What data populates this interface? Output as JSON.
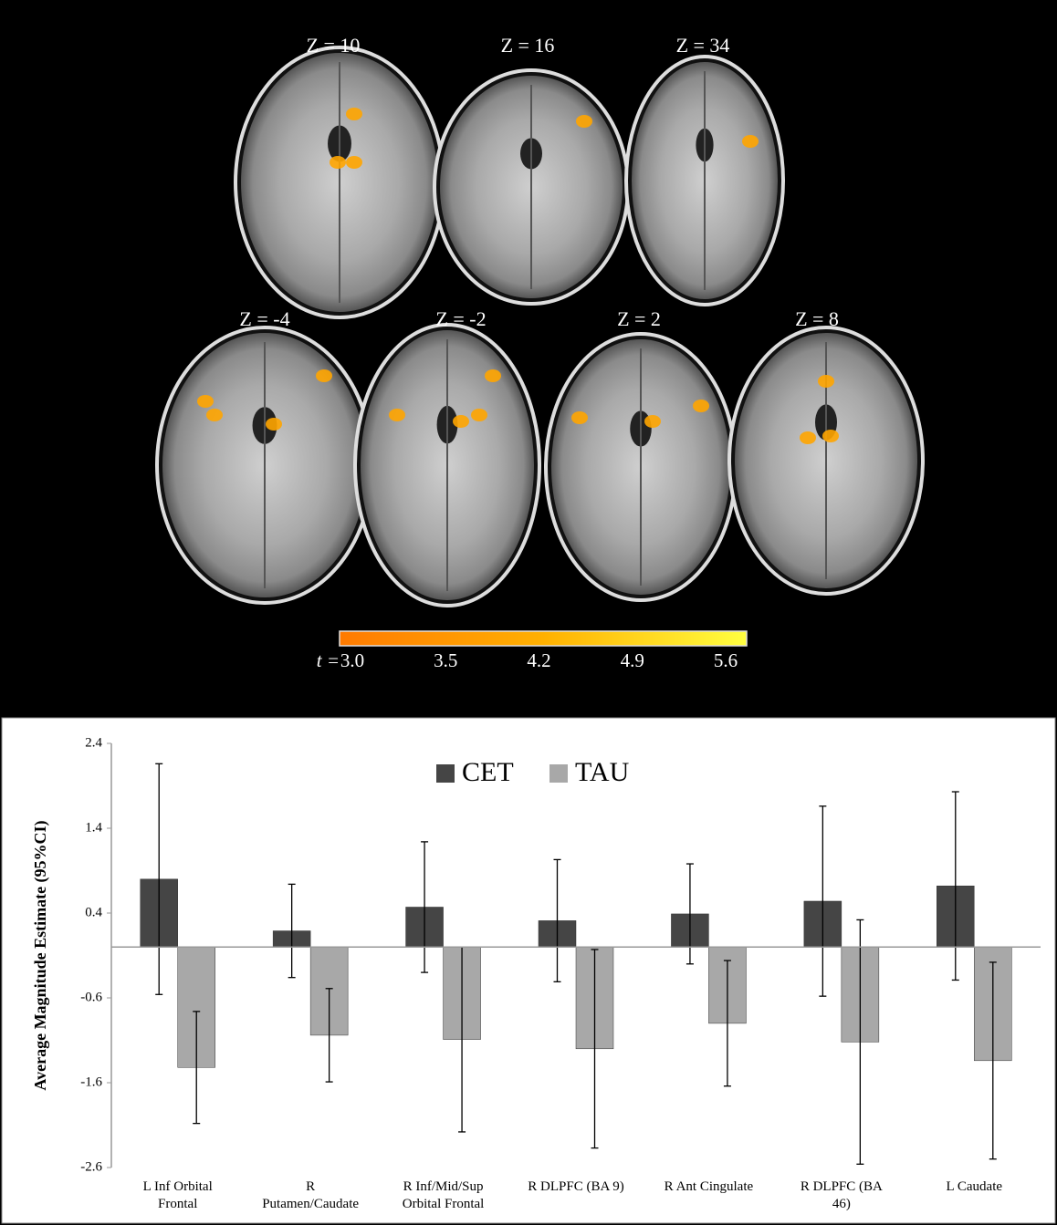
{
  "brain_panel": {
    "slices": [
      "Z = 10",
      "Z = 16",
      "Z = 34",
      "Z = -4",
      "Z = -2",
      "Z = 2",
      "Z = 8"
    ],
    "colorbar": {
      "label": "t =",
      "ticks": [
        {
          "value": 3.0,
          "label": "3.0"
        },
        3.5,
        4.2,
        4.9,
        5.6
      ]
    }
  },
  "chart_data": {
    "type": "bar",
    "ylabel": "Average Magnitude Estimate  (95%CI)",
    "categories": [
      "L Inf Orbital\nFrontal",
      "R\nPutamen/Caudate",
      "R Inf/Mid/Sup\nOrbital Frontal",
      "R DLPFC (BA 9)",
      "R Ant Cingulate",
      "R DLPFC (BA\n46)",
      "L Caudate"
    ],
    "series": [
      {
        "name": "CET",
        "color": "#454545",
        "values": [
          0.8,
          0.19,
          0.47,
          0.31,
          0.39,
          0.54,
          0.72
        ],
        "errors": [
          1.36,
          0.55,
          0.77,
          0.72,
          0.59,
          1.12,
          1.11
        ]
      },
      {
        "name": "TAU",
        "color": "#a8a8a8",
        "values": [
          -1.42,
          -1.04,
          -1.09,
          -1.2,
          -0.9,
          -1.12,
          -1.34
        ],
        "errors": [
          0.66,
          0.55,
          1.09,
          1.17,
          0.74,
          1.44,
          1.16
        ]
      }
    ],
    "ylim": [
      -2.6,
      2.4
    ],
    "yticks": [
      -2.6,
      -1.6,
      -0.6,
      0.4,
      1.4,
      2.4
    ],
    "grid": false,
    "legend": "top"
  }
}
